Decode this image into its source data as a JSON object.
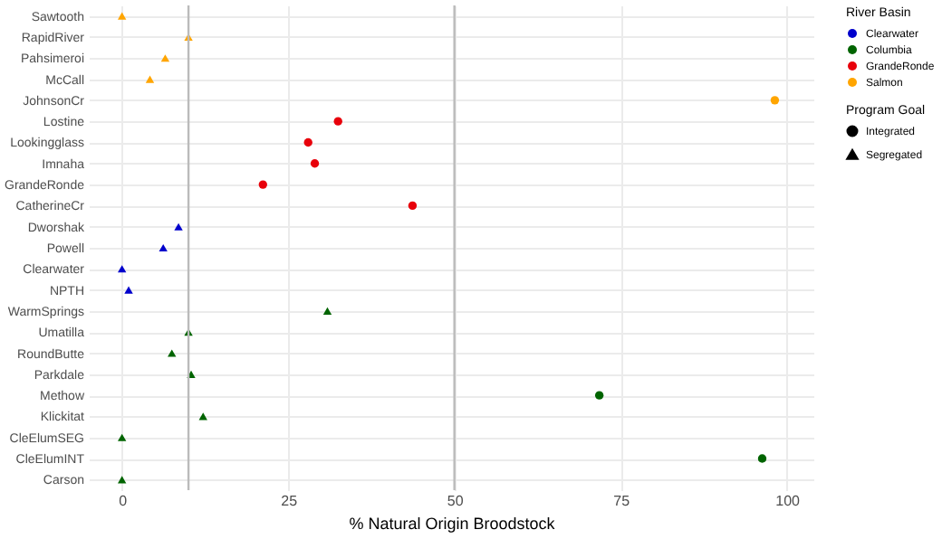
{
  "chart_data": {
    "type": "scatter",
    "orientation": "horizontal",
    "xlabel": "% Natural Origin Broodstock",
    "legend_title": [
      "River Basin",
      "Program Goal"
    ],
    "annotations": [
      "Integrated",
      "Segregated"
    ],
    "categories": [
      "Sawtooth",
      "RapidRiver",
      "Pahsimeroi",
      "McCall",
      "JohnsonCr",
      "Lostine",
      "Lookingglass",
      "Imnaha",
      "GrandeRonde",
      "CatherineCr",
      "Dworshak",
      "Powell",
      "Clearwater",
      "NPTH",
      "WarmSprings",
      "Umatilla",
      "RoundButte",
      "Parkdale",
      "Methow",
      "Klickitat",
      "CleElumSEG",
      "CleElumINT",
      "Carson"
    ],
    "series": [
      {
        "name": "Clearwater",
        "marker": "triangle",
        "color": "#0000cc",
        "values": [
          null,
          null,
          null,
          null,
          null,
          null,
          null,
          null,
          null,
          null,
          8.5,
          6.2,
          0,
          1,
          null,
          null,
          null,
          null,
          null,
          null,
          null,
          null,
          null
        ]
      },
      {
        "name": "Columbia",
        "marker": "circle",
        "color": "#006400",
        "values": [
          null,
          null,
          null,
          null,
          null,
          null,
          null,
          null,
          null,
          null,
          null,
          null,
          null,
          null,
          null,
          null,
          null,
          null,
          71.8,
          null,
          null,
          96.3,
          null
        ]
      },
      {
        "marker": "triangle",
        "color": "#006400",
        "values": [
          null,
          null,
          null,
          null,
          null,
          null,
          null,
          null,
          null,
          null,
          null,
          null,
          null,
          null,
          30.9,
          10,
          7.5,
          10.4,
          null,
          12.2,
          0,
          null,
          0
        ]
      },
      {
        "name": "GrandeRonde",
        "marker": "circle",
        "color": "#e8000b",
        "values": [
          null,
          null,
          null,
          null,
          null,
          32.5,
          28,
          29,
          21.2,
          43.7,
          null,
          null,
          null,
          null,
          null,
          null,
          null,
          null,
          null,
          null,
          null,
          null,
          null
        ]
      },
      {
        "name": "Salmon",
        "marker": "circle",
        "color": "#ffa500",
        "values": [
          null,
          null,
          null,
          null,
          98.2,
          null,
          null,
          null,
          null,
          null,
          null,
          null,
          null,
          null,
          null,
          null,
          null,
          null,
          null,
          null,
          null,
          null,
          null
        ]
      },
      {
        "marker": "triangle",
        "color": "#ffa500",
        "values": [
          0,
          10,
          6.5,
          4.2,
          null,
          null,
          null,
          null,
          null,
          null,
          null,
          null,
          null,
          null,
          null,
          null,
          null,
          null,
          null,
          null,
          null,
          null,
          null
        ]
      }
    ],
    "xlim": [
      -5,
      104
    ],
    "xticks": [
      0,
      25,
      50,
      75,
      100
    ],
    "ref_lines": [
      {
        "axis": "x",
        "value": 10,
        "color": "#bbbbbb"
      },
      {
        "axis": "x",
        "value": 50,
        "color": "#bbbbbb"
      }
    ],
    "grid": true,
    "legend": "right"
  }
}
